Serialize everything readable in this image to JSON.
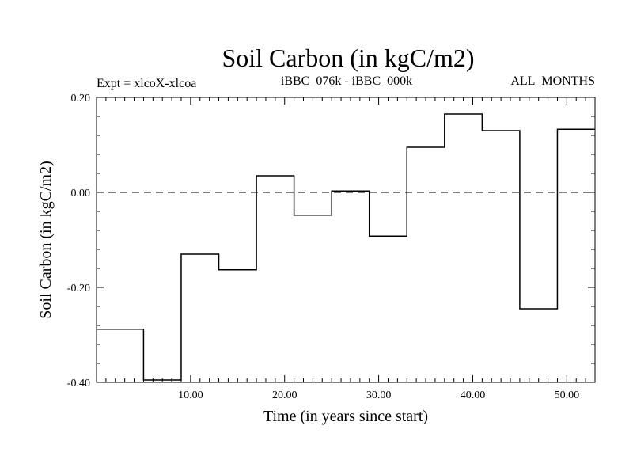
{
  "chart_data": {
    "type": "line",
    "title": "Soil Carbon (in kgC/m2)",
    "subtitle_left": "Expt = xlcoX-xlcoa",
    "subtitle_center": "iBBC_076k - iBBC_000k",
    "subtitle_right": "ALL_MONTHS",
    "xlabel": "Time (in years since start)",
    "ylabel": "Soil Carbon (in kgC/m2)",
    "xlim": [
      0,
      53
    ],
    "ylim": [
      -0.4,
      0.2
    ],
    "x_ticks": [
      10,
      20,
      30,
      40,
      50
    ],
    "x_tick_labels": [
      "10.00",
      "20.00",
      "30.00",
      "40.00",
      "50.00"
    ],
    "y_ticks": [
      -0.4,
      -0.2,
      0.0,
      0.2
    ],
    "y_tick_labels": [
      "-0.40",
      "-0.20",
      "0.00",
      "0.20"
    ],
    "reference_line": {
      "y": 0.0,
      "style": "dashed"
    },
    "step_series": {
      "edges": [
        0,
        5,
        9,
        13,
        17,
        21,
        25,
        29,
        33,
        37,
        41,
        45,
        49,
        53
      ],
      "values": [
        -0.288,
        -0.395,
        -0.13,
        -0.163,
        0.035,
        -0.048,
        0.003,
        -0.092,
        0.095,
        0.165,
        0.13,
        -0.245,
        0.133
      ]
    }
  }
}
